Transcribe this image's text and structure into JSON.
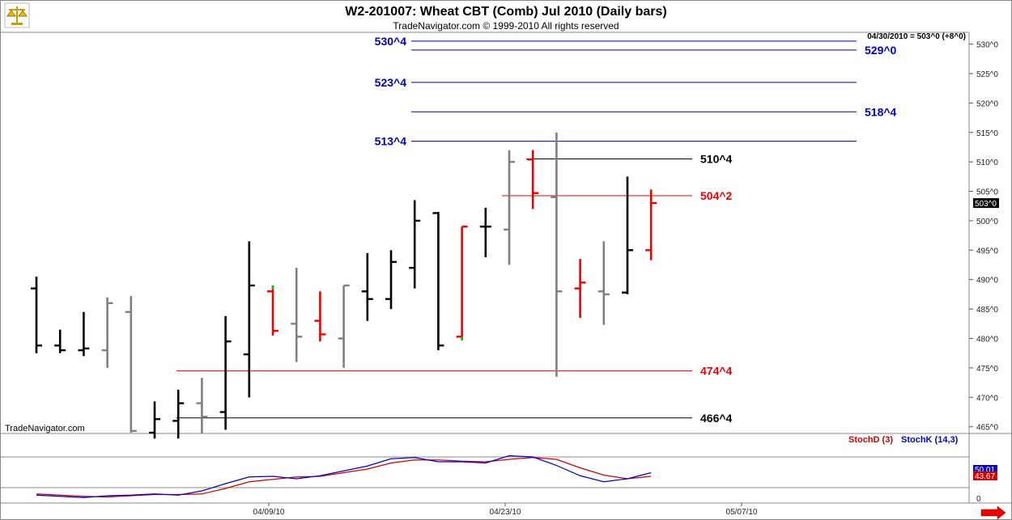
{
  "header": {
    "title": "W2-201007:  Wheat CBT (Comb) Jul 2010  (Daily bars)",
    "subtitle": "TradeNavigator.com © 1999-2010 All rights reserved",
    "last_price_note": "04/30/2010 = 503^0 (+8^0)"
  },
  "watermark": "TradeNavigator.com",
  "colors": {
    "black_bar": "#000000",
    "gray_bar": "#808080",
    "red_bar": "#ee0000",
    "blue_level": "#0000bb",
    "red_level": "#ee0000",
    "black_level": "#000000",
    "stoch_d": "#cc0000",
    "stoch_k": "#0000cc",
    "current_price_bg": "#000000",
    "nav_arrow": "#ee0000"
  },
  "chart_data": {
    "type": "ohlc",
    "price_axis": {
      "ylim": [
        464,
        532
      ],
      "ticks": [
        "465^0",
        "470^0",
        "475^0",
        "480^0",
        "485^0",
        "490^0",
        "495^0",
        "500^0",
        "505^0",
        "510^0",
        "515^0",
        "520^0",
        "525^0",
        "530^0"
      ],
      "tick_values": [
        465,
        470,
        475,
        480,
        485,
        490,
        495,
        500,
        505,
        510,
        515,
        520,
        525,
        530
      ],
      "current_price_label": "503^0",
      "current_price": 503
    },
    "x_axis": {
      "dates": [
        "04/09/10",
        "04/23/10",
        "05/07/10"
      ],
      "date_index": [
        10,
        20,
        30
      ]
    },
    "bars": [
      {
        "i": 0,
        "open": 488.5,
        "high": 490.5,
        "low": 477.5,
        "close": 478.8,
        "color": "black"
      },
      {
        "i": 1,
        "open": 478.8,
        "high": 481.5,
        "low": 477.5,
        "close": 478.0,
        "color": "black"
      },
      {
        "i": 2,
        "open": 478.0,
        "high": 484.5,
        "low": 477.0,
        "close": 478.3,
        "color": "black"
      },
      {
        "i": 3,
        "open": 478.0,
        "high": 487.0,
        "low": 475.0,
        "close": 486.0,
        "color": "gray"
      },
      {
        "i": 4,
        "open": 484.5,
        "high": 487.2,
        "low": 464.0,
        "close": 464.3,
        "color": "gray"
      },
      {
        "i": 5,
        "open": 464.0,
        "high": 469.3,
        "low": 463.0,
        "close": 466.3,
        "color": "black"
      },
      {
        "i": 6,
        "open": 466.0,
        "high": 471.3,
        "low": 463.0,
        "close": 469.0,
        "color": "black"
      },
      {
        "i": 7,
        "open": 469.0,
        "high": 473.3,
        "low": 463.8,
        "close": 466.7,
        "color": "gray"
      },
      {
        "i": 8,
        "open": 467.5,
        "high": 483.8,
        "low": 464.5,
        "close": 479.5,
        "color": "black"
      },
      {
        "i": 9,
        "open": 477.3,
        "high": 496.5,
        "low": 470.0,
        "close": 489.0,
        "color": "black"
      },
      {
        "i": 10,
        "open": 488.0,
        "high": 489.0,
        "low": 480.5,
        "close": 481.3,
        "color": "red",
        "high_mark_green": true
      },
      {
        "i": 11,
        "open": 482.5,
        "high": 492.0,
        "low": 476.0,
        "close": 480.3,
        "color": "gray"
      },
      {
        "i": 12,
        "open": 483.0,
        "high": 488.0,
        "low": 479.5,
        "close": 480.7,
        "color": "red"
      },
      {
        "i": 13,
        "open": 480.0,
        "high": 489.0,
        "low": 475.0,
        "close": 489.0,
        "color": "gray"
      },
      {
        "i": 14,
        "open": 488.0,
        "high": 494.5,
        "low": 483.0,
        "close": 486.7,
        "color": "black"
      },
      {
        "i": 15,
        "open": 486.7,
        "high": 495.0,
        "low": 485.0,
        "close": 493.0,
        "color": "black"
      },
      {
        "i": 16,
        "open": 492.0,
        "high": 503.5,
        "low": 488.5,
        "close": 500.0,
        "color": "black"
      },
      {
        "i": 17,
        "open": 501.3,
        "high": 501.5,
        "low": 478.0,
        "close": 478.8,
        "color": "black"
      },
      {
        "i": 18,
        "open": 480.3,
        "high": 499.0,
        "low": 479.7,
        "close": 499.0,
        "color": "red",
        "low_mark_green": true
      },
      {
        "i": 19,
        "open": 499.0,
        "high": 502.2,
        "low": 493.8,
        "close": 499.0,
        "color": "black"
      },
      {
        "i": 20,
        "open": 498.5,
        "high": 512.0,
        "low": 492.5,
        "close": 510.0,
        "color": "gray"
      },
      {
        "i": 21,
        "open": 510.4,
        "high": 512.0,
        "low": 502.0,
        "close": 504.7,
        "color": "red"
      },
      {
        "i": 22,
        "open": 504.0,
        "high": 515.0,
        "low": 473.5,
        "close": 488.0,
        "color": "gray"
      },
      {
        "i": 23,
        "open": 488.5,
        "high": 493.5,
        "low": 483.5,
        "close": 489.5,
        "color": "red"
      },
      {
        "i": 24,
        "open": 488.0,
        "high": 496.5,
        "low": 482.3,
        "close": 487.5,
        "color": "gray"
      },
      {
        "i": 25,
        "open": 487.8,
        "high": 507.5,
        "low": 487.5,
        "close": 495.0,
        "color": "black"
      },
      {
        "i": 26,
        "open": 495.0,
        "high": 505.3,
        "low": 493.3,
        "close": 503.0,
        "color": "red"
      }
    ],
    "levels": [
      {
        "label": "530^4",
        "value": 530.5,
        "color": "blue",
        "label_side": "left"
      },
      {
        "label": "529^0",
        "value": 529.0,
        "color": "blue",
        "label_side": "right"
      },
      {
        "label": "523^4",
        "value": 523.5,
        "color": "blue",
        "label_side": "left"
      },
      {
        "label": "518^4",
        "value": 518.5,
        "color": "blue",
        "label_side": "right"
      },
      {
        "label": "513^4",
        "value": 513.5,
        "color": "blue",
        "label_side": "left"
      },
      {
        "label": "510^4",
        "value": 510.5,
        "color": "black",
        "label_side": "right"
      },
      {
        "label": "504^2",
        "value": 504.25,
        "color": "red",
        "label_side": "right"
      },
      {
        "label": "474^4",
        "value": 474.5,
        "color": "red",
        "label_side": "right"
      },
      {
        "label": "466^4",
        "value": 466.5,
        "color": "black",
        "label_side": "right"
      }
    ],
    "stochastic": {
      "legend": [
        {
          "name": "StochD (3)",
          "color": "stoch_d"
        },
        {
          "name": "StochK (14,3)",
          "color": "stoch_k"
        }
      ],
      "ylim": [
        0,
        100
      ],
      "upper_line": 80,
      "lower_line": 20,
      "zero_label": "0",
      "k_value_label": "50.01",
      "d_value_label": "43.67",
      "k_values": [
        13,
        11,
        9,
        12,
        13,
        15,
        13,
        20,
        32,
        43,
        44,
        40,
        45,
        53,
        61,
        73,
        75,
        68,
        68,
        66,
        78,
        76,
        62,
        45,
        35,
        40,
        50
      ],
      "d_values": [
        15,
        13,
        11,
        10,
        12,
        14,
        14,
        15,
        24,
        35,
        39,
        43,
        44,
        50,
        56,
        66,
        71,
        71,
        69,
        68,
        72,
        75,
        72,
        58,
        46,
        40,
        44
      ]
    }
  },
  "nav": {
    "forward_arrow_icon": "red-right-arrow"
  }
}
